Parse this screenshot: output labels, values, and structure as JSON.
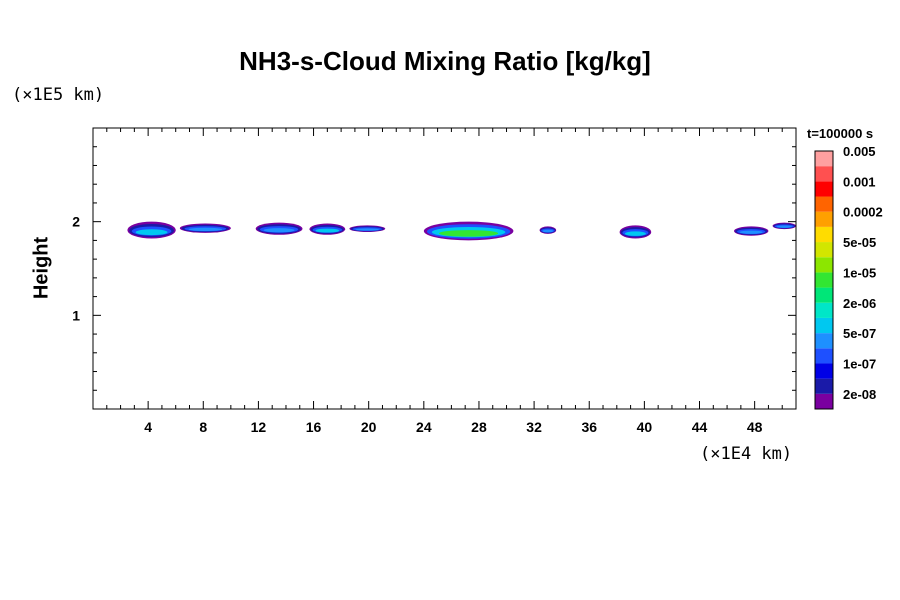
{
  "chart_data": {
    "type": "heatmap",
    "title": "NH3-s-Cloud Mixing Ratio [kg/kg]",
    "xlabel": "",
    "ylabel": "Height",
    "x_unit": "(×1E4 km)",
    "y_unit": "(×1E5 km)",
    "time_label": "t=100000 s",
    "xlim": [
      0,
      51
    ],
    "ylim": [
      0,
      3
    ],
    "x_ticks": [
      4,
      8,
      12,
      16,
      20,
      24,
      28,
      32,
      36,
      40,
      44,
      48
    ],
    "y_ticks": [
      1,
      2
    ],
    "colorbar": {
      "colors": [
        "#7a00a0",
        "#1a1aa8",
        "#0000e6",
        "#1e50ff",
        "#1e90ff",
        "#00c8f0",
        "#00e6c8",
        "#00e678",
        "#32e632",
        "#8ce600",
        "#d2e600",
        "#ffdc00",
        "#ffa000",
        "#ff6400",
        "#ff0000",
        "#ff5050",
        "#ffa0a0"
      ],
      "labels": [
        "2e-08",
        "1e-07",
        "5e-07",
        "2e-06",
        "1e-05",
        "5e-05",
        "0.0002",
        "0.001",
        "0.005"
      ]
    },
    "cloud_features": [
      {
        "x0": 2.5,
        "x1": 6.0,
        "y_top": 2.0,
        "y_bot": 1.82,
        "peak": "5e-07"
      },
      {
        "x0": 6.3,
        "x1": 10.0,
        "y_top": 1.98,
        "y_bot": 1.88,
        "peak": "1e-07"
      },
      {
        "x0": 11.8,
        "x1": 15.2,
        "y_top": 1.99,
        "y_bot": 1.86,
        "peak": "1e-07"
      },
      {
        "x0": 15.7,
        "x1": 18.3,
        "y_top": 1.98,
        "y_bot": 1.86,
        "peak": "5e-07"
      },
      {
        "x0": 18.6,
        "x1": 21.2,
        "y_top": 1.96,
        "y_bot": 1.89,
        "peak": "1e-07"
      },
      {
        "x0": 24.0,
        "x1": 30.5,
        "y_top": 2.0,
        "y_bot": 1.8,
        "peak": "1e-05"
      },
      {
        "x0": 32.4,
        "x1": 33.6,
        "y_top": 1.95,
        "y_bot": 1.87,
        "peak": "1e-07"
      },
      {
        "x0": 38.2,
        "x1": 40.5,
        "y_top": 1.96,
        "y_bot": 1.82,
        "peak": "5e-07"
      },
      {
        "x0": 46.5,
        "x1": 49.0,
        "y_top": 1.95,
        "y_bot": 1.85,
        "peak": "1e-07"
      },
      {
        "x0": 49.3,
        "x1": 51.0,
        "y_top": 1.99,
        "y_bot": 1.92,
        "peak": "1e-07"
      }
    ]
  }
}
